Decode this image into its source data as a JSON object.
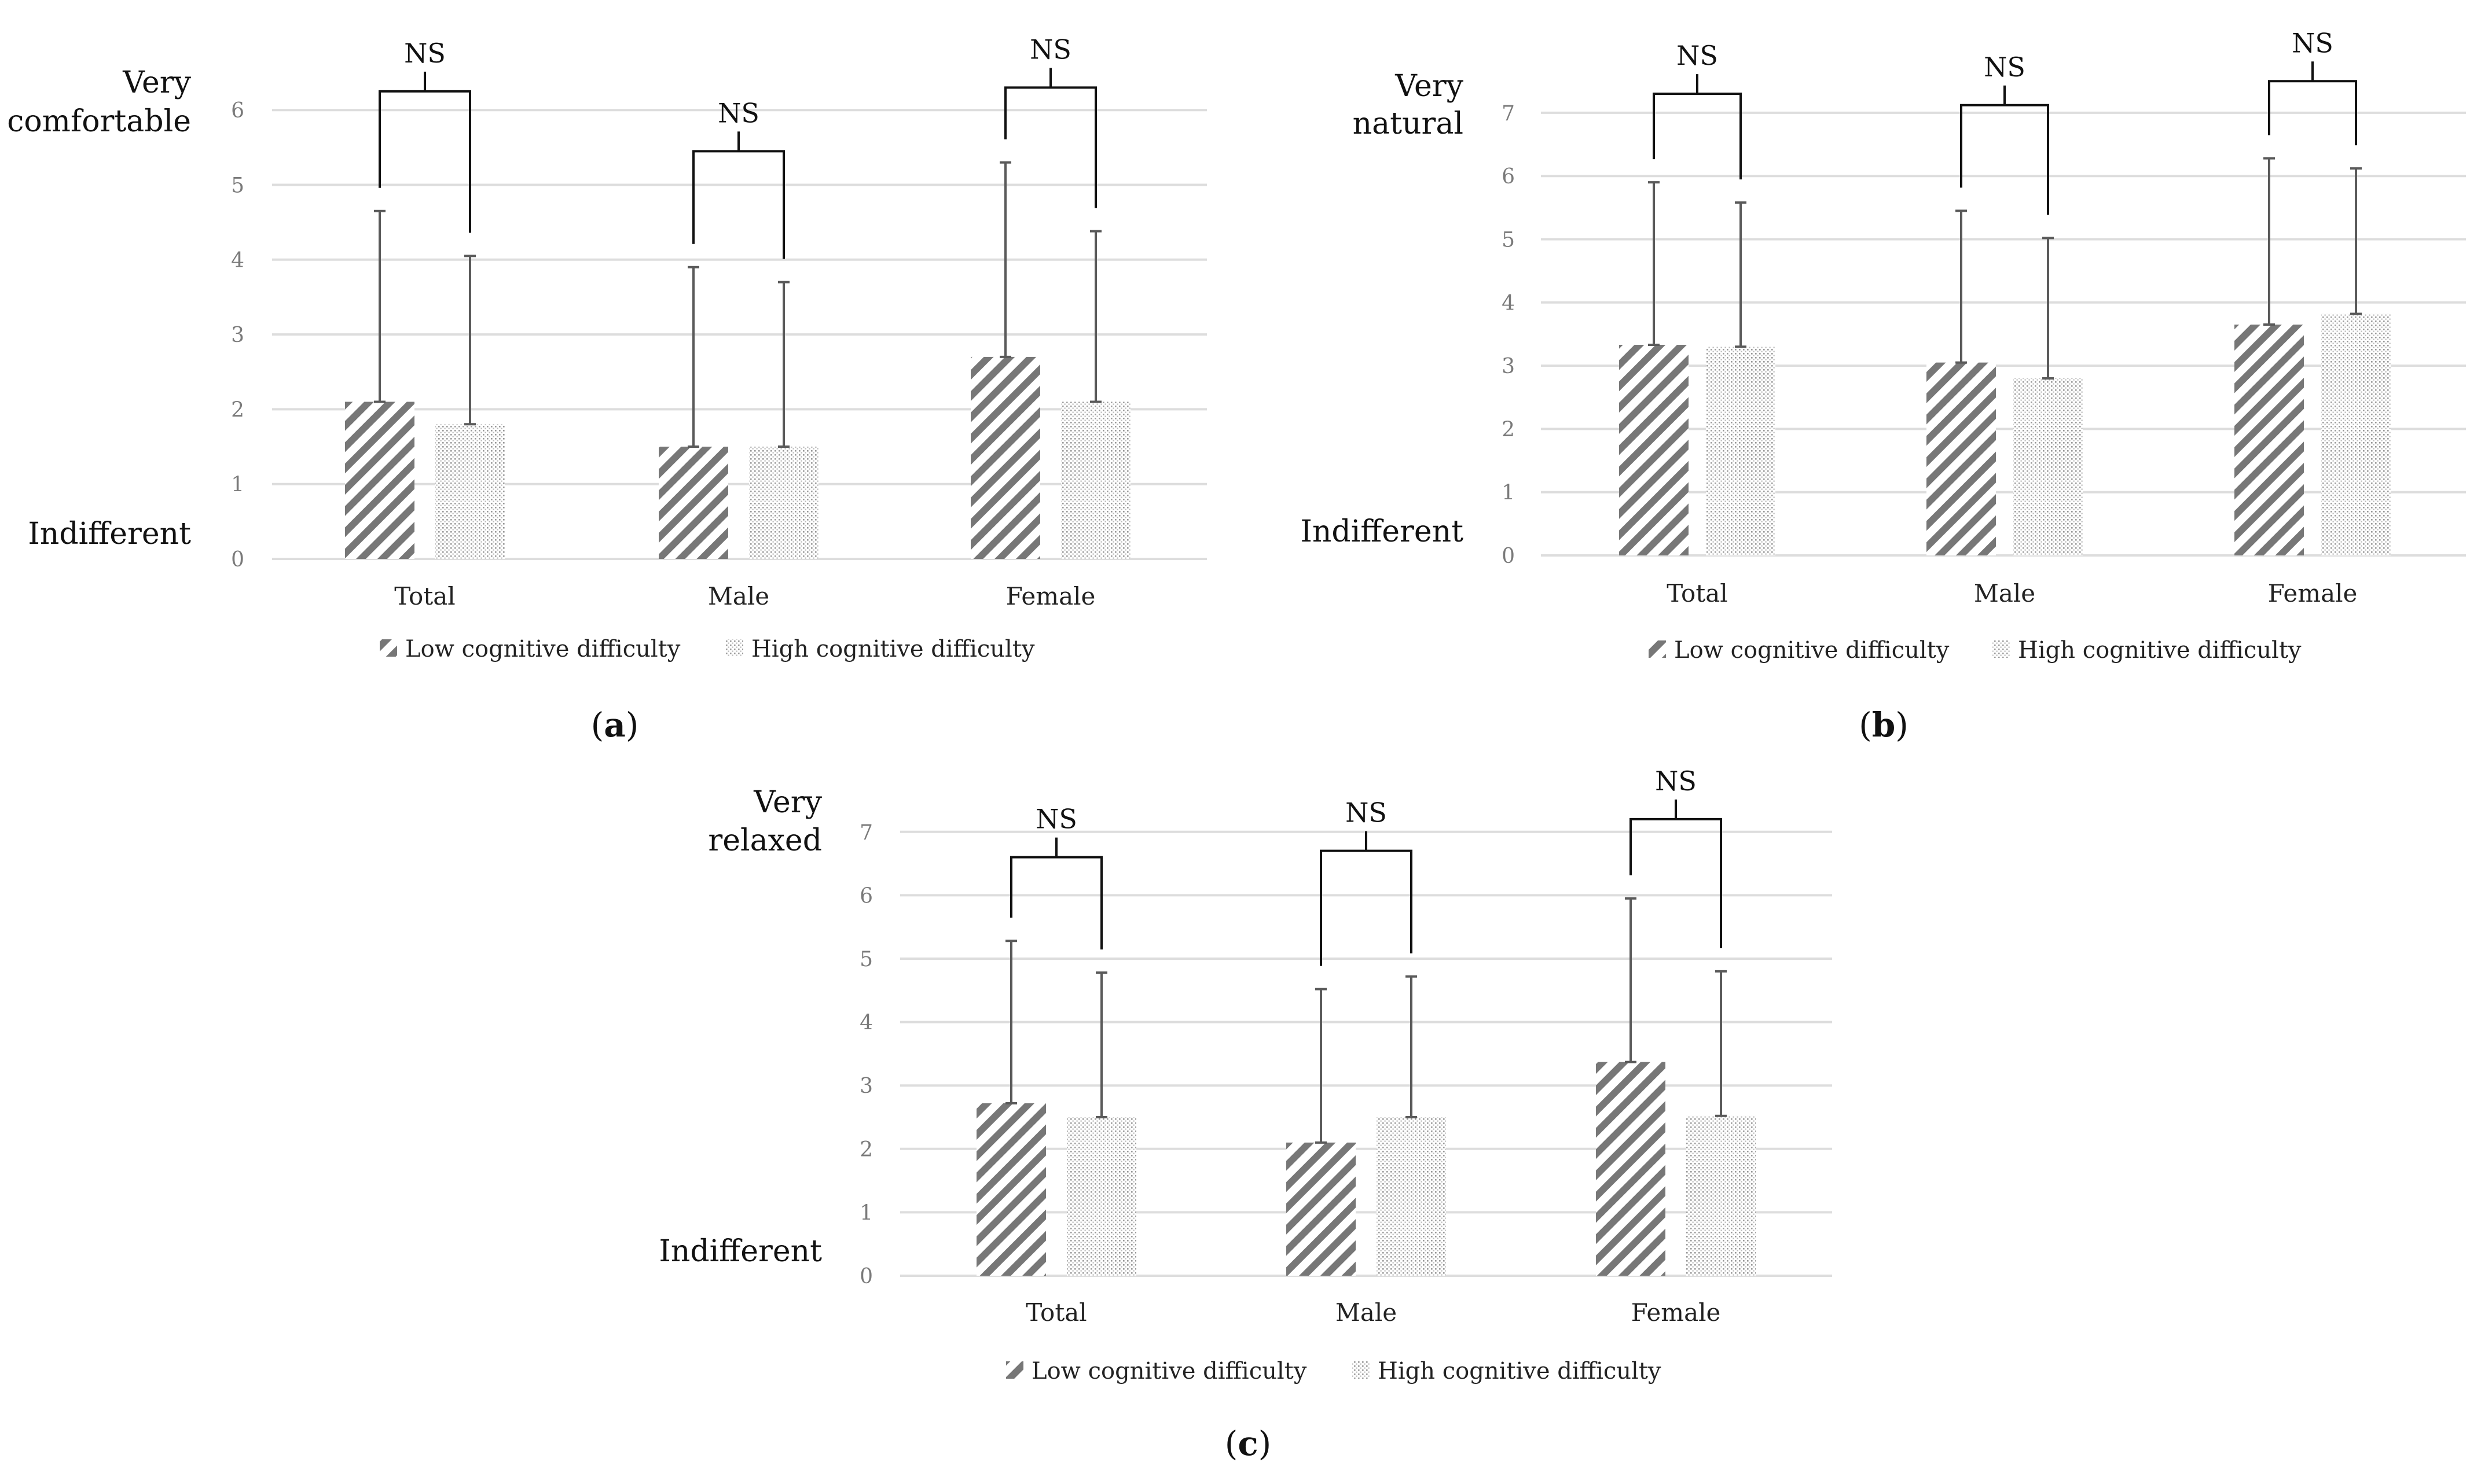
{
  "colors": {
    "low_hatch": "#777777",
    "high_dots": "#9a9a9a",
    "grid": "#dddddd",
    "axis_text": "#7a7a7a",
    "error_bar": "#5a5a5a",
    "bracket": "#111111"
  },
  "chart_data": [
    {
      "type": "bar",
      "panel_label": "a",
      "ylim": [
        0,
        6
      ],
      "yticks": [
        0,
        1,
        2,
        3,
        4,
        5,
        6
      ],
      "top_anchor_label": [
        "Very",
        "comfortable"
      ],
      "bottom_anchor_label": "Indifferent",
      "categories": [
        "Total",
        "Male",
        "Female"
      ],
      "series": [
        {
          "name": "Low cognitive difficulty",
          "values": [
            2.1,
            1.5,
            2.7
          ],
          "error_upper": [
            4.65,
            3.9,
            5.3
          ]
        },
        {
          "name": "High cognitive difficulty",
          "values": [
            1.8,
            1.5,
            2.1
          ],
          "error_upper": [
            4.05,
            3.7,
            4.38
          ]
        }
      ],
      "significance": [
        {
          "category": "Total",
          "label": "NS",
          "level": 6.25
        },
        {
          "category": "Male",
          "label": "NS",
          "level": 5.45
        },
        {
          "category": "Female",
          "label": "NS",
          "level": 6.3
        }
      ],
      "legend_position": "bottom"
    },
    {
      "type": "bar",
      "panel_label": "b",
      "ylim": [
        0,
        7
      ],
      "yticks": [
        0,
        1,
        2,
        3,
        4,
        5,
        6,
        7
      ],
      "top_anchor_label": [
        "Very",
        "natural"
      ],
      "bottom_anchor_label": "Indifferent",
      "categories": [
        "Total",
        "Male",
        "Female"
      ],
      "series": [
        {
          "name": "Low cognitive difficulty",
          "values": [
            3.33,
            3.05,
            3.65
          ],
          "error_upper": [
            5.9,
            5.45,
            6.28
          ]
        },
        {
          "name": "High cognitive difficulty",
          "values": [
            3.3,
            2.8,
            3.82
          ],
          "error_upper": [
            5.58,
            5.02,
            6.12
          ]
        }
      ],
      "significance": [
        {
          "category": "Total",
          "label": "NS",
          "level": 7.3
        },
        {
          "category": "Male",
          "label": "NS",
          "level": 7.12
        },
        {
          "category": "Female",
          "label": "NS",
          "level": 7.5
        }
      ],
      "legend_position": "bottom"
    },
    {
      "type": "bar",
      "panel_label": "c",
      "ylim": [
        0,
        7
      ],
      "yticks": [
        0,
        1,
        2,
        3,
        4,
        5,
        6,
        7
      ],
      "top_anchor_label": [
        "Very",
        "relaxed"
      ],
      "bottom_anchor_label": "Indifferent",
      "categories": [
        "Total",
        "Male",
        "Female"
      ],
      "series": [
        {
          "name": "Low cognitive difficulty",
          "values": [
            2.72,
            2.1,
            3.37
          ],
          "error_upper": [
            5.28,
            4.52,
            5.95
          ]
        },
        {
          "name": "High cognitive difficulty",
          "values": [
            2.5,
            2.5,
            2.52
          ],
          "error_upper": [
            4.78,
            4.72,
            4.8
          ]
        }
      ],
      "significance": [
        {
          "category": "Total",
          "label": "NS",
          "level": 6.6
        },
        {
          "category": "Male",
          "label": "NS",
          "level": 6.7
        },
        {
          "category": "Female",
          "label": "NS",
          "level": 7.2
        }
      ],
      "legend_position": "bottom"
    }
  ]
}
